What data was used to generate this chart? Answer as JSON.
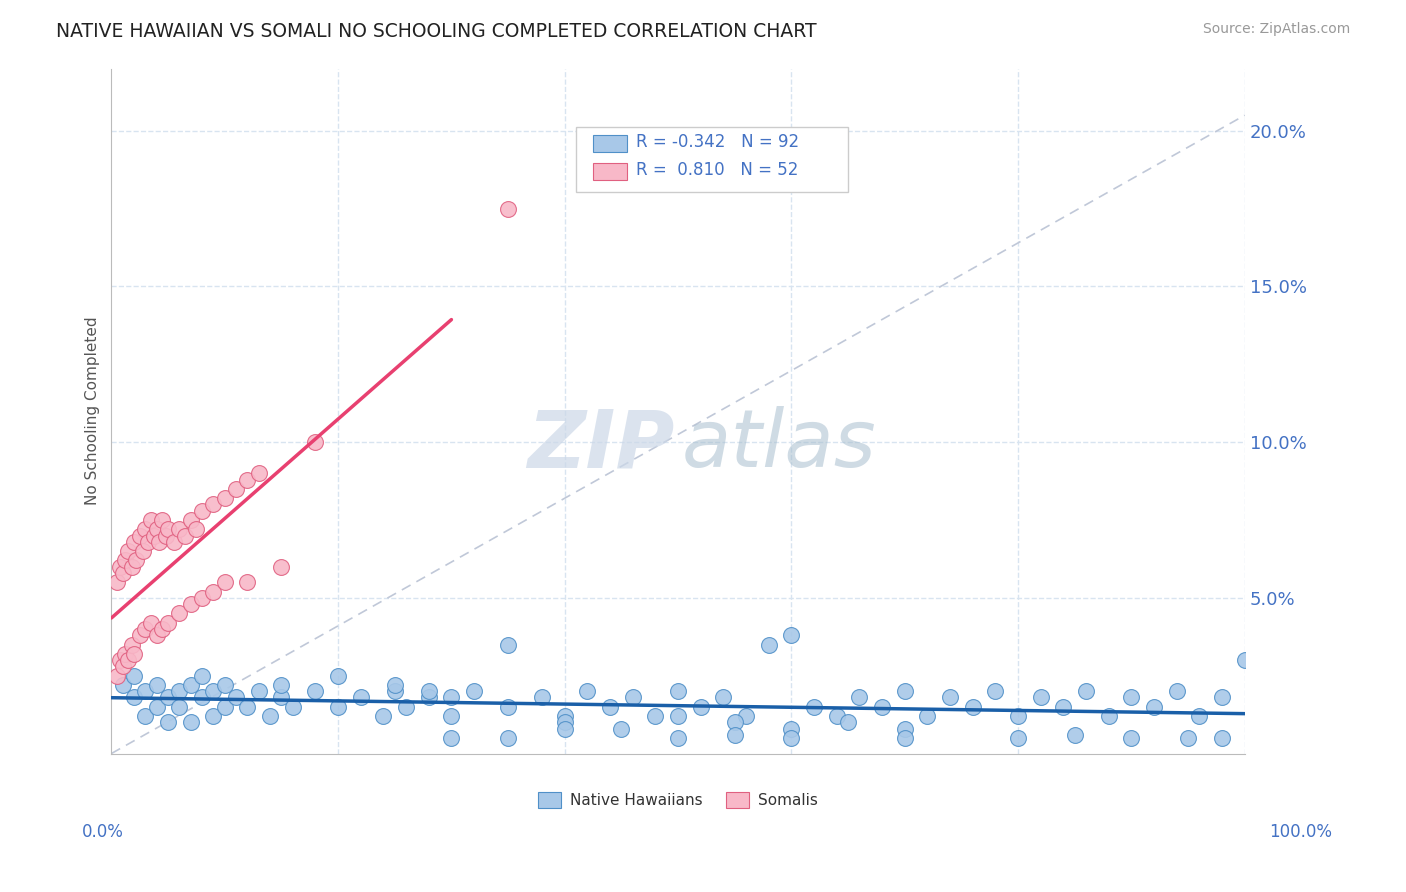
{
  "title": "NATIVE HAWAIIAN VS SOMALI NO SCHOOLING COMPLETED CORRELATION CHART",
  "source": "Source: ZipAtlas.com",
  "ylabel": "No Schooling Completed",
  "ytick_labels": [
    "",
    "5.0%",
    "10.0%",
    "15.0%",
    "20.0%"
  ],
  "ytick_values": [
    0.0,
    0.05,
    0.1,
    0.15,
    0.2
  ],
  "xlim": [
    0.0,
    1.0
  ],
  "ylim": [
    0.0,
    0.22
  ],
  "color_hawaiian": "#a8c8e8",
  "color_somali": "#f8b8c8",
  "color_hawaiian_edge": "#5090c8",
  "color_somali_edge": "#e06080",
  "color_hawaiian_line": "#1a5fa8",
  "color_somali_line": "#e84070",
  "background_color": "#ffffff",
  "grid_color": "#d8e4f0",
  "watermark_zip_color": "#ccd8e8",
  "watermark_atlas_color": "#a8bece",
  "hawaiian_x": [
    0.01,
    0.02,
    0.02,
    0.03,
    0.03,
    0.04,
    0.04,
    0.05,
    0.05,
    0.06,
    0.06,
    0.07,
    0.07,
    0.08,
    0.08,
    0.09,
    0.09,
    0.1,
    0.1,
    0.11,
    0.12,
    0.13,
    0.14,
    0.15,
    0.15,
    0.16,
    0.18,
    0.2,
    0.22,
    0.24,
    0.25,
    0.26,
    0.28,
    0.3,
    0.32,
    0.35,
    0.38,
    0.4,
    0.42,
    0.44,
    0.46,
    0.48,
    0.5,
    0.52,
    0.54,
    0.56,
    0.58,
    0.6,
    0.62,
    0.64,
    0.66,
    0.68,
    0.7,
    0.72,
    0.74,
    0.76,
    0.78,
    0.8,
    0.82,
    0.84,
    0.86,
    0.88,
    0.9,
    0.92,
    0.94,
    0.96,
    0.98,
    1.0,
    0.35,
    0.4,
    0.45,
    0.5,
    0.55,
    0.6,
    0.65,
    0.7,
    0.3,
    0.35,
    0.4,
    0.5,
    0.55,
    0.6,
    0.7,
    0.8,
    0.85,
    0.9,
    0.95,
    0.98,
    0.2,
    0.25,
    0.28,
    0.3
  ],
  "hawaiian_y": [
    0.022,
    0.018,
    0.025,
    0.012,
    0.02,
    0.015,
    0.022,
    0.018,
    0.01,
    0.02,
    0.015,
    0.022,
    0.01,
    0.018,
    0.025,
    0.012,
    0.02,
    0.015,
    0.022,
    0.018,
    0.015,
    0.02,
    0.012,
    0.018,
    0.022,
    0.015,
    0.02,
    0.015,
    0.018,
    0.012,
    0.02,
    0.015,
    0.018,
    0.012,
    0.02,
    0.015,
    0.018,
    0.012,
    0.02,
    0.015,
    0.018,
    0.012,
    0.02,
    0.015,
    0.018,
    0.012,
    0.035,
    0.038,
    0.015,
    0.012,
    0.018,
    0.015,
    0.02,
    0.012,
    0.018,
    0.015,
    0.02,
    0.012,
    0.018,
    0.015,
    0.02,
    0.012,
    0.018,
    0.015,
    0.02,
    0.012,
    0.018,
    0.03,
    0.035,
    0.01,
    0.008,
    0.012,
    0.01,
    0.008,
    0.01,
    0.008,
    0.005,
    0.005,
    0.008,
    0.005,
    0.006,
    0.005,
    0.005,
    0.005,
    0.006,
    0.005,
    0.005,
    0.005,
    0.025,
    0.022,
    0.02,
    0.018
  ],
  "somali_x": [
    0.005,
    0.008,
    0.01,
    0.012,
    0.015,
    0.018,
    0.02,
    0.022,
    0.025,
    0.028,
    0.03,
    0.032,
    0.035,
    0.038,
    0.04,
    0.042,
    0.045,
    0.048,
    0.05,
    0.055,
    0.06,
    0.065,
    0.07,
    0.075,
    0.08,
    0.09,
    0.1,
    0.11,
    0.12,
    0.13,
    0.005,
    0.008,
    0.01,
    0.012,
    0.015,
    0.018,
    0.02,
    0.025,
    0.03,
    0.035,
    0.04,
    0.045,
    0.05,
    0.06,
    0.07,
    0.08,
    0.09,
    0.1,
    0.12,
    0.15,
    0.35,
    0.18
  ],
  "somali_y": [
    0.055,
    0.06,
    0.058,
    0.062,
    0.065,
    0.06,
    0.068,
    0.062,
    0.07,
    0.065,
    0.072,
    0.068,
    0.075,
    0.07,
    0.072,
    0.068,
    0.075,
    0.07,
    0.072,
    0.068,
    0.072,
    0.07,
    0.075,
    0.072,
    0.078,
    0.08,
    0.082,
    0.085,
    0.088,
    0.09,
    0.025,
    0.03,
    0.028,
    0.032,
    0.03,
    0.035,
    0.032,
    0.038,
    0.04,
    0.042,
    0.038,
    0.04,
    0.042,
    0.045,
    0.048,
    0.05,
    0.052,
    0.055,
    0.055,
    0.06,
    0.175,
    0.1
  ]
}
